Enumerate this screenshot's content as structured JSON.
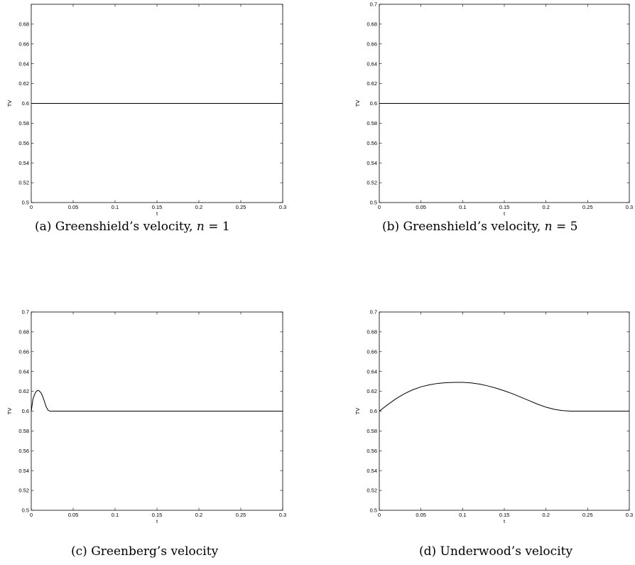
{
  "captions": [
    {
      "prefix": "(a) Greenshield’s velocity, ",
      "var": "n",
      "suffix": " = 1"
    },
    {
      "prefix": "(b) Greenshield’s velocity, ",
      "var": "n",
      "suffix": " = 5"
    },
    {
      "prefix": "(c) Greenberg’s velocity",
      "var": "",
      "suffix": ""
    },
    {
      "prefix": "(d) Underwood’s velocity",
      "var": "",
      "suffix": ""
    }
  ],
  "chart_data": [
    {
      "type": "line",
      "xlabel": "t",
      "ylabel": "TV",
      "xlim": [
        0,
        0.3
      ],
      "ylim": [
        0.5,
        0.7
      ],
      "xticks": [
        "0",
        "0.05",
        "0.1",
        "0.15",
        "0.2",
        "0.25",
        "0.3"
      ],
      "yticks": [
        "0.5",
        "0.52",
        "0.54",
        "0.56",
        "0.58",
        "0.6",
        "0.62",
        "0.64",
        "0.66",
        "0.68"
      ],
      "grid": false,
      "series": [
        {
          "x": [
            0,
            0.3
          ],
          "y": [
            0.6,
            0.6
          ]
        }
      ]
    },
    {
      "type": "line",
      "xlabel": "t",
      "ylabel": "TV",
      "xlim": [
        0,
        0.3
      ],
      "ylim": [
        0.5,
        0.7
      ],
      "xticks": [
        "0",
        "0.05",
        "0.1",
        "0.15",
        "0.2",
        "0.25",
        "0.3"
      ],
      "yticks": [
        "0.5",
        "0.52",
        "0.54",
        "0.56",
        "0.58",
        "0.6",
        "0.62",
        "0.64",
        "0.66",
        "0.68",
        "0.7"
      ],
      "grid": false,
      "series": [
        {
          "x": [
            0,
            0.3
          ],
          "y": [
            0.6,
            0.6
          ]
        }
      ]
    },
    {
      "type": "line",
      "xlabel": "t",
      "ylabel": "TV",
      "xlim": [
        0,
        0.3
      ],
      "ylim": [
        0.5,
        0.7
      ],
      "xticks": [
        "0",
        "0.05",
        "0.1",
        "0.15",
        "0.2",
        "0.25",
        "0.3"
      ],
      "yticks": [
        "0.5",
        "0.52",
        "0.54",
        "0.56",
        "0.58",
        "0.6",
        "0.62",
        "0.64",
        "0.66",
        "0.68",
        "0.7"
      ],
      "grid": false,
      "series": [
        {
          "x": [
            0,
            0.002,
            0.004,
            0.006,
            0.008,
            0.01,
            0.012,
            0.014,
            0.016,
            0.018,
            0.02,
            0.022,
            0.024,
            0.026,
            0.03,
            0.05,
            0.1,
            0.15,
            0.2,
            0.25,
            0.3
          ],
          "y": [
            0.6,
            0.612,
            0.617,
            0.62,
            0.621,
            0.62,
            0.618,
            0.614,
            0.609,
            0.604,
            0.601,
            0.6,
            0.6,
            0.6,
            0.6,
            0.6,
            0.6,
            0.6,
            0.6,
            0.6,
            0.6
          ]
        }
      ]
    },
    {
      "type": "line",
      "xlabel": "t",
      "ylabel": "TV",
      "xlim": [
        0,
        0.3
      ],
      "ylim": [
        0.5,
        0.7
      ],
      "xticks": [
        "0",
        "0.05",
        "0.1",
        "0.15",
        "0.2",
        "0.25",
        "0.3"
      ],
      "yticks": [
        "0.5",
        "0.52",
        "0.54",
        "0.56",
        "0.58",
        "0.6",
        "0.62",
        "0.64",
        "0.66",
        "0.68",
        "0.7"
      ],
      "grid": false,
      "series": [
        {
          "x": [
            0,
            0.01,
            0.02,
            0.03,
            0.04,
            0.05,
            0.06,
            0.07,
            0.08,
            0.09,
            0.1,
            0.11,
            0.12,
            0.13,
            0.14,
            0.15,
            0.16,
            0.17,
            0.18,
            0.19,
            0.2,
            0.21,
            0.22,
            0.23,
            0.25,
            0.27,
            0.3
          ],
          "y": [
            0.6,
            0.6065,
            0.6125,
            0.6175,
            0.6215,
            0.6245,
            0.6265,
            0.628,
            0.6287,
            0.629,
            0.629,
            0.6285,
            0.6273,
            0.6255,
            0.6232,
            0.6205,
            0.6175,
            0.614,
            0.6105,
            0.607,
            0.604,
            0.6018,
            0.6005,
            0.6,
            0.6,
            0.6,
            0.6
          ]
        }
      ]
    }
  ]
}
